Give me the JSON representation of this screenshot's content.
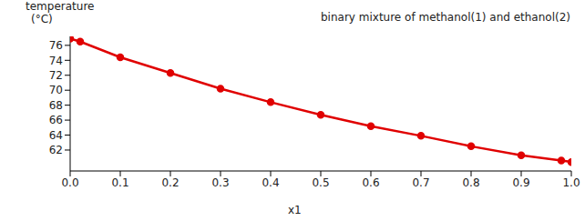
{
  "chart_data": {
    "type": "line",
    "title": "binary mixture of methanol(1) and ethanol(2)",
    "x_label": "x1",
    "y_label": "temperature\n(°C)",
    "x": [
      0,
      0.02,
      0.1,
      0.2,
      0.3,
      0.4,
      0.5,
      0.6,
      0.7,
      0.8,
      0.9,
      0.98,
      1.0
    ],
    "series": [
      {
        "name": "temperature",
        "color": "#e00000",
        "values": [
          76.9,
          76.5,
          74.4,
          72.3,
          70.2,
          68.4,
          66.7,
          65.2,
          63.9,
          62.5,
          61.3,
          60.6,
          60.4
        ],
        "marker": "circle",
        "line_style": "solid"
      }
    ],
    "xlim": [
      0,
      1.0
    ],
    "xticks": [
      {
        "value": 0,
        "label": "0.0"
      },
      0.1,
      0.2,
      0.3,
      0.4,
      0.5,
      0.6,
      0.7,
      0.8,
      0.9,
      {
        "value": 1.0,
        "label": "1.0"
      }
    ],
    "ylim": [
      59.2,
      77.2
    ],
    "yticks": [
      62,
      64,
      66,
      68,
      70,
      72,
      74,
      76
    ],
    "grid": false
  }
}
